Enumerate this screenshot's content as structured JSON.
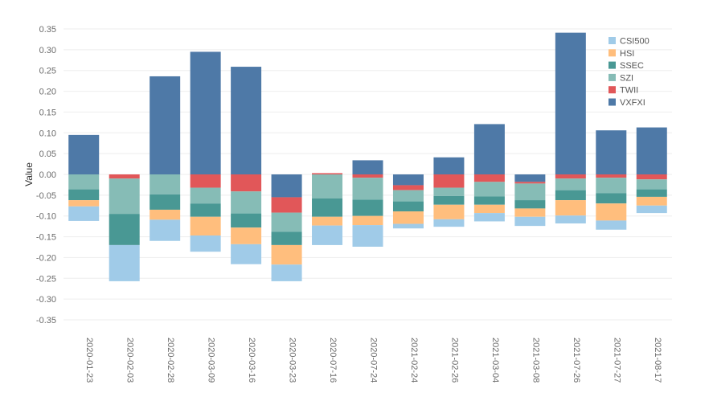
{
  "chart_data": {
    "type": "bar",
    "stacked": true,
    "title": "",
    "xlabel": "",
    "ylabel": "Value",
    "ylim": [
      -0.37,
      0.37
    ],
    "yticks": [
      -0.35,
      -0.3,
      -0.25,
      -0.2,
      -0.15,
      -0.1,
      -0.05,
      0.0,
      0.05,
      0.1,
      0.15,
      0.2,
      0.25,
      0.3,
      0.35
    ],
    "ytick_labels": [
      "-0.35",
      "-0.30",
      "-0.25",
      "-0.20",
      "-0.15",
      "-0.10",
      "-0.05",
      "0.00",
      "0.05",
      "0.10",
      "0.15",
      "0.20",
      "0.25",
      "0.30",
      "0.35"
    ],
    "grid": true,
    "legend_position": "top-right",
    "categories": [
      "2020-01-23",
      "2020-02-03",
      "2020-02-28",
      "2020-03-09",
      "2020-03-16",
      "2020-03-23",
      "2020-07-16",
      "2020-07-24",
      "2021-02-24",
      "2021-02-26",
      "2021-03-04",
      "2021-03-08",
      "2021-07-26",
      "2021-07-27",
      "2021-08-17"
    ],
    "series": [
      {
        "name": "VXFXI",
        "color": "#4e79a7",
        "values": [
          0.095,
          0.0,
          0.236,
          0.295,
          0.259,
          -0.055,
          0.0,
          0.034,
          -0.026,
          0.041,
          0.121,
          -0.018,
          0.341,
          0.106,
          0.113
        ]
      },
      {
        "name": "TWII",
        "color": "#e15759",
        "values": [
          0.0,
          -0.01,
          0.0,
          -0.032,
          -0.041,
          -0.037,
          0.003,
          -0.008,
          -0.012,
          -0.032,
          -0.018,
          -0.004,
          -0.01,
          -0.008,
          -0.012
        ]
      },
      {
        "name": "SZI",
        "color": "#86bcb6",
        "values": [
          -0.036,
          -0.085,
          -0.048,
          -0.038,
          -0.053,
          -0.046,
          -0.058,
          -0.053,
          -0.027,
          -0.02,
          -0.035,
          -0.04,
          -0.028,
          -0.037,
          -0.024
        ]
      },
      {
        "name": "SSEC",
        "color": "#499894",
        "values": [
          -0.026,
          -0.075,
          -0.037,
          -0.032,
          -0.034,
          -0.032,
          -0.044,
          -0.039,
          -0.024,
          -0.021,
          -0.02,
          -0.02,
          -0.024,
          -0.025,
          -0.018
        ]
      },
      {
        "name": "HSI",
        "color": "#ffbe7d",
        "values": [
          -0.015,
          0.0,
          -0.024,
          -0.045,
          -0.04,
          -0.047,
          -0.021,
          -0.022,
          -0.03,
          -0.035,
          -0.02,
          -0.02,
          -0.037,
          -0.041,
          -0.021
        ]
      },
      {
        "name": "CSI500",
        "color": "#a0cbe8",
        "values": [
          -0.035,
          -0.087,
          -0.051,
          -0.039,
          -0.048,
          -0.04,
          -0.047,
          -0.052,
          -0.011,
          -0.018,
          -0.02,
          -0.022,
          -0.019,
          -0.022,
          -0.018
        ]
      }
    ],
    "legend_order": [
      "CSI500",
      "HSI",
      "SSEC",
      "SZI",
      "TWII",
      "VXFXI"
    ]
  }
}
